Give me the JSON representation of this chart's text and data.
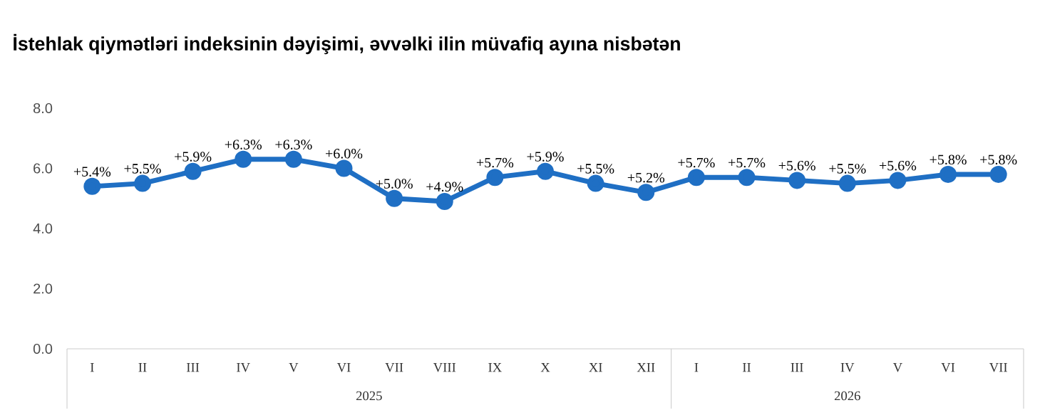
{
  "chart_data": {
    "type": "line",
    "title": "İstehlak qiymətləri indeksinin dəyişimi, əvvəlki ilin müvafiq ayına nisbətən",
    "categories": [
      "I",
      "II",
      "III",
      "IV",
      "V",
      "VI",
      "VII",
      "VIII",
      "IX",
      "X",
      "XI",
      "XII",
      "I",
      "II",
      "III",
      "IV",
      "V",
      "VI",
      "VII"
    ],
    "values": [
      5.4,
      5.5,
      5.9,
      6.3,
      6.3,
      6.0,
      5.0,
      4.9,
      5.7,
      5.9,
      5.5,
      5.2,
      5.7,
      5.7,
      5.6,
      5.5,
      5.6,
      5.8,
      5.8
    ],
    "value_labels": [
      "+5.4%",
      "+5.5%",
      "+5.9%",
      "+6.3%",
      "+6.3%",
      "+6.0%",
      "+5.0%",
      "+4.9%",
      "+5.7%",
      "+5.9%",
      "+5.5%",
      "+5.2%",
      "+5.7%",
      "+5.7%",
      "+5.6%",
      "+5.5%",
      "+5.6%",
      "+5.8%",
      "+5.8%"
    ],
    "color": "#1f6fc4",
    "marker": "circle",
    "ylim": [
      0,
      8
    ],
    "yticks": [
      {
        "value": 0,
        "label": "0.0"
      },
      {
        "value": 2,
        "label": "2.0"
      },
      {
        "value": 4,
        "label": "4.0"
      },
      {
        "value": 6,
        "label": "6.0"
      },
      {
        "value": 8,
        "label": "8.0"
      }
    ],
    "annotations": [
      "2025",
      "2026"
    ]
  }
}
